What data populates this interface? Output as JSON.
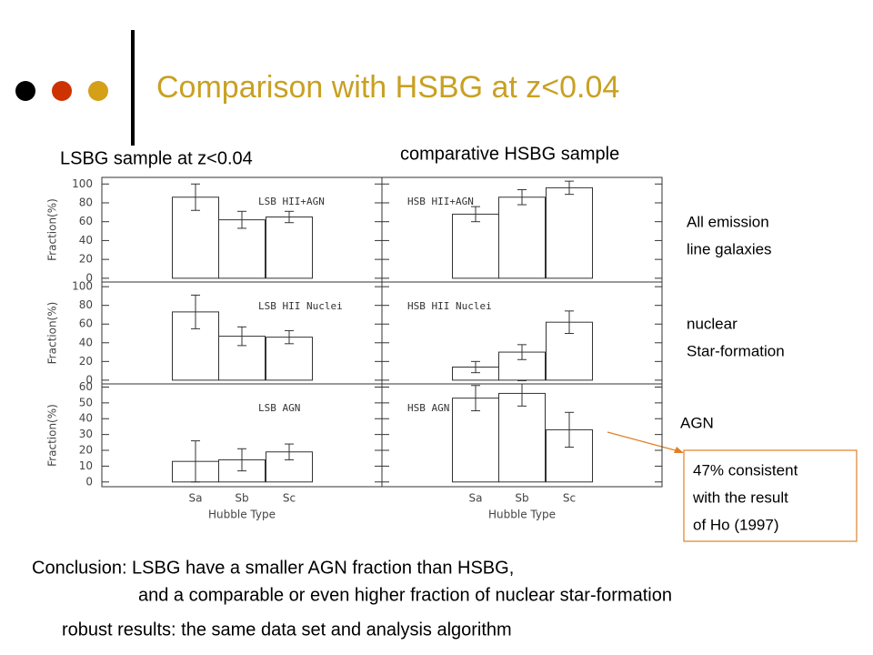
{
  "slide": {
    "title": "Comparison with HSBG  at z<0.04",
    "left_heading": "LSBG sample at z<0.04",
    "right_heading": "comparative HSBG sample",
    "row_labels": [
      [
        "All emission",
        "line galaxies"
      ],
      [
        "nuclear",
        "Star-formation"
      ],
      [
        "AGN"
      ]
    ],
    "note": [
      "47% consistent",
      "with the result",
      "of Ho (1997)"
    ],
    "conclusion": [
      "Conclusion: LSBG have a smaller AGN fraction than HSBG,",
      "and a comparable or even higher fraction of nuclear star-formation",
      "robust results: the same data set and analysis algorithm"
    ]
  },
  "chart_data": [
    {
      "type": "bar",
      "label": "LSB HII+AGN",
      "ylabel": "Fraction(%)",
      "values": [
        86,
        62,
        65
      ],
      "errors": [
        14,
        9,
        6
      ],
      "ylim": [
        -4,
        107
      ],
      "yticks": [
        0,
        20,
        40,
        60,
        80,
        100
      ]
    },
    {
      "type": "bar",
      "label": "HSB HII+AGN",
      "values": [
        68,
        86,
        96
      ],
      "errors": [
        8,
        8,
        7
      ],
      "ylim": [
        -4,
        107
      ],
      "yticks": [
        0,
        20,
        40,
        60,
        80,
        100
      ]
    },
    {
      "type": "bar",
      "label": "LSB HII Nuclei",
      "ylabel": "Fraction(%)",
      "values": [
        73,
        47,
        46
      ],
      "errors": [
        18,
        10,
        7
      ],
      "ylim": [
        -4,
        105
      ],
      "yticks": [
        0,
        20,
        40,
        60,
        80,
        100
      ]
    },
    {
      "type": "bar",
      "label": "HSB HII Nuclei",
      "values": [
        14,
        30,
        62
      ],
      "errors": [
        6,
        8,
        12
      ],
      "ylim": [
        -4,
        105
      ],
      "yticks": [
        0,
        20,
        40,
        60,
        80,
        100
      ]
    },
    {
      "type": "bar",
      "label": "LSB AGN",
      "ylabel": "Fraction(%)",
      "xlabel": "Hubble Type",
      "categories": [
        "Sa",
        "Sb",
        "Sc"
      ],
      "values": [
        13,
        14,
        19
      ],
      "errors": [
        13,
        7,
        5
      ],
      "ylim": [
        -3,
        62
      ],
      "yticks": [
        0,
        10,
        20,
        30,
        40,
        50,
        60
      ]
    },
    {
      "type": "bar",
      "label": "HSB AGN",
      "xlabel": "Hubble Type",
      "categories": [
        "Sa",
        "Sb",
        "Sc"
      ],
      "values": [
        53,
        56,
        33
      ],
      "errors": [
        8,
        8,
        11
      ],
      "ylim": [
        -3,
        62
      ],
      "yticks": [
        0,
        10,
        20,
        30,
        40,
        50,
        60
      ]
    }
  ]
}
